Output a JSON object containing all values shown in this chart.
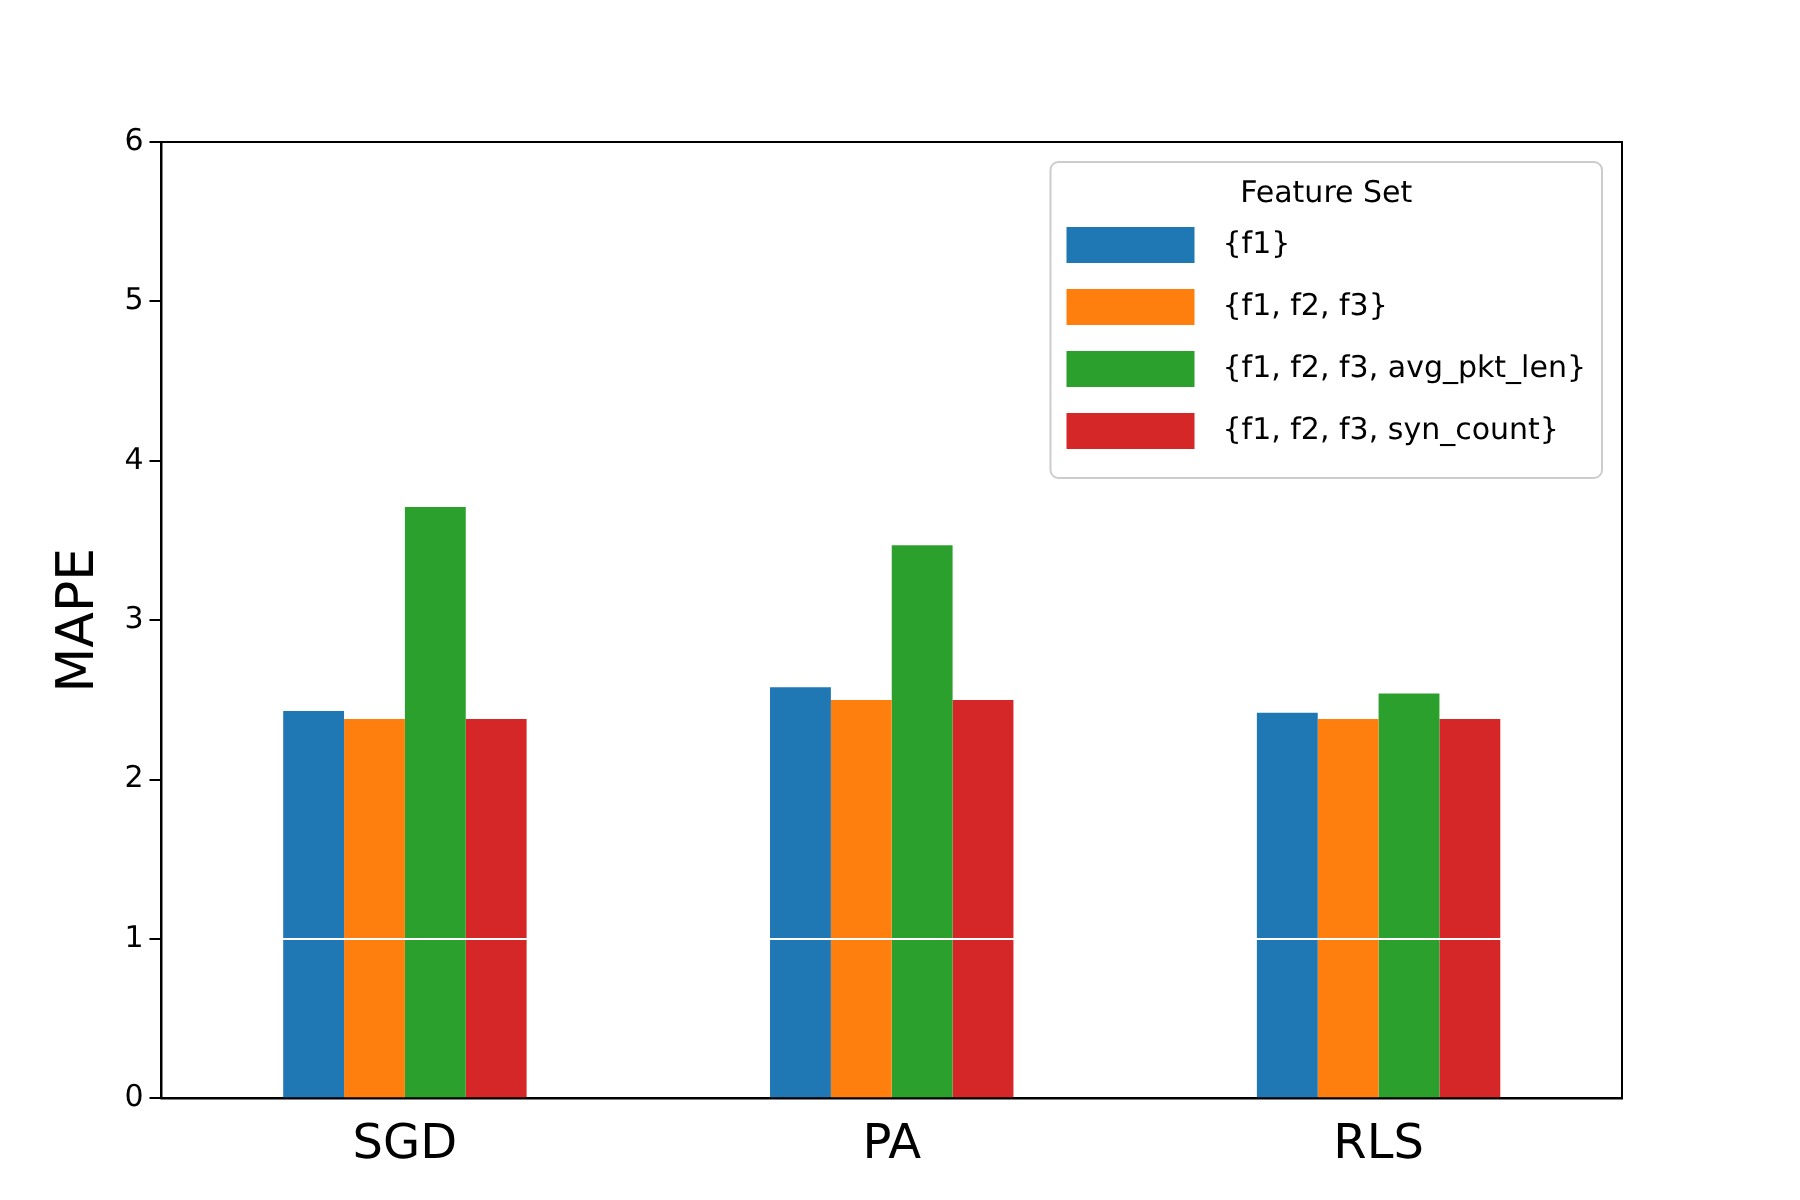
{
  "chart_data": {
    "type": "bar",
    "ylabel": "MAPE",
    "legend_title": "Feature Set",
    "legend": "top right",
    "grid": false,
    "categories": [
      "SGD",
      "PA",
      "RLS"
    ],
    "series": [
      {
        "name": "{f1}",
        "color": "#1f77b4",
        "values": [
          2.43,
          2.58,
          2.42
        ]
      },
      {
        "name": "{f1, f2, f3}",
        "color": "#ff7f0e",
        "values": [
          2.38,
          2.5,
          2.38
        ]
      },
      {
        "name": "{f1, f2, f3, avg_pkt_len}",
        "color": "#2ca02c",
        "values": [
          3.71,
          3.47,
          2.54
        ]
      },
      {
        "name": "{f1, f2, f3, syn_count}",
        "color": "#d62728",
        "values": [
          2.38,
          2.5,
          2.38
        ]
      }
    ],
    "ylim": [
      0,
      6
    ],
    "yticks": [
      0,
      1,
      2,
      3,
      4,
      5,
      6
    ],
    "ref_lines": [
      {
        "axis": "y",
        "value": 1,
        "color": "#ffffff"
      }
    ]
  }
}
